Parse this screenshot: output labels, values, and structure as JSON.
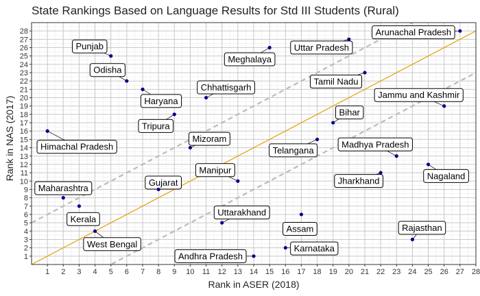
{
  "chart_data": {
    "type": "scatter",
    "title": "State Rankings Based on Language Results for Std III Students (Rural)",
    "xlabel": "Rank in ASER (2018)",
    "ylabel": "Rank in NAS (2017)",
    "xlim": [
      0,
      28
    ],
    "ylim": [
      0,
      29
    ],
    "ticks": [
      1,
      2,
      3,
      4,
      5,
      6,
      7,
      8,
      9,
      10,
      11,
      12,
      13,
      14,
      15,
      16,
      17,
      18,
      19,
      20,
      21,
      22,
      23,
      24,
      25,
      26,
      27,
      28
    ],
    "grid": true,
    "point_color": "#00008b",
    "reference_lines": [
      {
        "kind": "identity",
        "slope": 1,
        "intercept": 0,
        "color": "#e69f00",
        "style": "solid"
      },
      {
        "kind": "upper band",
        "slope": 1,
        "intercept": 5,
        "color": "#bbbbbb",
        "style": "dashed"
      },
      {
        "kind": "lower band",
        "slope": 1,
        "intercept": -5,
        "color": "#bbbbbb",
        "style": "dashed"
      }
    ],
    "points": [
      {
        "label": "Himachal Pradesh",
        "x": 1,
        "y": 16
      },
      {
        "label": "Maharashtra",
        "x": 2,
        "y": 8
      },
      {
        "label": "Kerala",
        "x": 3,
        "y": 7
      },
      {
        "label": "West Bengal",
        "x": 4,
        "y": 4
      },
      {
        "label": "Punjab",
        "x": 5,
        "y": 25
      },
      {
        "label": "Odisha",
        "x": 6,
        "y": 22
      },
      {
        "label": "Haryana",
        "x": 7,
        "y": 21
      },
      {
        "label": "Gujarat",
        "x": 8,
        "y": 9
      },
      {
        "label": "Tripura",
        "x": 9,
        "y": 18
      },
      {
        "label": "Mizoram",
        "x": 10,
        "y": 14
      },
      {
        "label": "Chhattisgarh",
        "x": 11,
        "y": 20
      },
      {
        "label": "Uttarakhand",
        "x": 12,
        "y": 5
      },
      {
        "label": "Manipur",
        "x": 13,
        "y": 10
      },
      {
        "label": "Andhra Pradesh",
        "x": 14,
        "y": 1
      },
      {
        "label": "Meghalaya",
        "x": 15,
        "y": 26
      },
      {
        "label": "Karnataka",
        "x": 16,
        "y": 2
      },
      {
        "label": "Assam",
        "x": 17,
        "y": 6
      },
      {
        "label": "Telangana",
        "x": 18,
        "y": 15
      },
      {
        "label": "Bihar",
        "x": 19,
        "y": 17
      },
      {
        "label": "Uttar Pradesh",
        "x": 20,
        "y": 27
      },
      {
        "label": "Tamil Nadu",
        "x": 21,
        "y": 23
      },
      {
        "label": "Jharkhand",
        "x": 22,
        "y": 11
      },
      {
        "label": "Madhya Pradesh",
        "x": 23,
        "y": 13
      },
      {
        "label": "Rajasthan",
        "x": 24,
        "y": 3
      },
      {
        "label": "Nagaland",
        "x": 25,
        "y": 12
      },
      {
        "label": "Jammu and Kashmir",
        "x": 26,
        "y": 19
      },
      {
        "label": "Arunachal Pradesh",
        "x": 27,
        "y": 28
      }
    ]
  }
}
